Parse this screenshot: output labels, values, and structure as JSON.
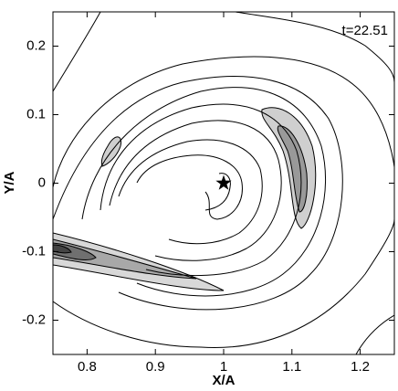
{
  "chart_data": {
    "type": "contour",
    "annotation": "t=22.51",
    "xlabel": "X/A",
    "ylabel": "Y/A",
    "xlim": [
      0.75,
      1.25
    ],
    "ylim": [
      -0.25,
      0.25
    ],
    "xticks": [
      0.8,
      0.9,
      1,
      1.1,
      1.2
    ],
    "yticks": [
      -0.2,
      -0.1,
      0,
      0.1,
      0.2
    ],
    "star": {
      "x": 1,
      "y": 0
    },
    "grid": false
  }
}
